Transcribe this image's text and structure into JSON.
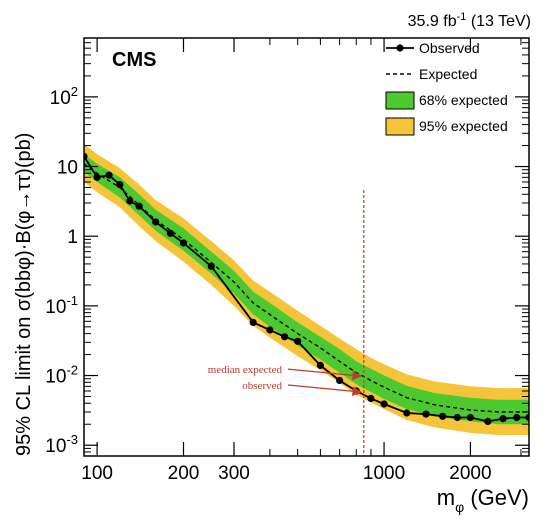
{
  "chart_data": {
    "type": "line",
    "lumi_label": "35.9 fb",
    "lumi_sup": "-1",
    "lumi_energy": " (13 TeV)",
    "experiment_label": "CMS",
    "xlabel_main": "m",
    "xlabel_sub": "φ",
    "xlabel_unit": " (GeV)",
    "ylabel": "95% CL limit on σ(bbφ)·B(φ→ττ)(pb)",
    "xscale": "log",
    "yscale": "log",
    "xlim": [
      90,
      3200
    ],
    "ylim": [
      0.0007,
      700
    ],
    "x_ticks": [
      {
        "value": 100,
        "label": "100"
      },
      {
        "value": 200,
        "label": "200"
      },
      {
        "value": 300,
        "label": "300"
      },
      {
        "value": 1000,
        "label": "1000"
      },
      {
        "value": 2000,
        "label": "2000"
      }
    ],
    "y_ticks": [
      {
        "value": 0.001,
        "base": "10",
        "exp": "-3"
      },
      {
        "value": 0.01,
        "base": "10",
        "exp": "-2"
      },
      {
        "value": 0.1,
        "base": "10",
        "exp": "-1"
      },
      {
        "value": 1,
        "base": "1",
        "exp": ""
      },
      {
        "value": 10,
        "base": "10",
        "exp": ""
      },
      {
        "value": 100,
        "base": "10",
        "exp": "2"
      }
    ],
    "legend": {
      "placement": "top-right",
      "entries": [
        {
          "label": "Observed",
          "style": "observed"
        },
        {
          "label": "Expected",
          "style": "expected"
        },
        {
          "label": "68% expected",
          "style": "band68"
        },
        {
          "label": "95% expected",
          "style": "band95"
        }
      ]
    },
    "colors": {
      "band68": "#4dc930",
      "band95": "#f5c43a",
      "observed": "#000000",
      "expected": "#000000",
      "annotation": "#c0392b"
    },
    "series": [
      {
        "name": "Observed",
        "x": [
          90,
          100,
          110,
          120,
          130,
          140,
          160,
          180,
          200,
          250,
          350,
          400,
          450,
          500,
          600,
          700,
          800,
          900,
          1000,
          1200,
          1400,
          1600,
          1800,
          2000,
          2300,
          2600,
          2900,
          3200
        ],
        "values": [
          14,
          7,
          7.5,
          5.5,
          3.2,
          2.7,
          1.6,
          1.1,
          0.8,
          0.37,
          0.058,
          0.045,
          0.036,
          0.031,
          0.014,
          0.0085,
          0.006,
          0.0047,
          0.0039,
          0.0029,
          0.0028,
          0.0026,
          0.0025,
          0.0025,
          0.0022,
          0.0024,
          0.0025,
          0.0025
        ]
      },
      {
        "name": "Expected",
        "x": [
          90,
          100,
          120,
          140,
          160,
          200,
          250,
          300,
          350,
          400,
          500,
          600,
          700,
          800,
          900,
          1000,
          1200,
          1500,
          2000,
          2500,
          3200
        ],
        "values": [
          11,
          8,
          5.0,
          2.8,
          1.7,
          0.9,
          0.42,
          0.22,
          0.11,
          0.075,
          0.04,
          0.025,
          0.016,
          0.011,
          0.0085,
          0.0068,
          0.0048,
          0.0038,
          0.0032,
          0.003,
          0.003
        ]
      }
    ],
    "band68": {
      "x": [
        90,
        100,
        120,
        140,
        160,
        200,
        250,
        300,
        350,
        400,
        500,
        600,
        700,
        800,
        900,
        1000,
        1200,
        1500,
        2000,
        2500,
        3200
      ],
      "lower": [
        8.5,
        6.0,
        3.6,
        2.0,
        1.2,
        0.62,
        0.29,
        0.15,
        0.075,
        0.05,
        0.027,
        0.017,
        0.011,
        0.0075,
        0.0058,
        0.0046,
        0.0033,
        0.0026,
        0.0022,
        0.002,
        0.002
      ],
      "upper": [
        15,
        11,
        7.0,
        4.0,
        2.4,
        1.3,
        0.6,
        0.32,
        0.16,
        0.11,
        0.058,
        0.036,
        0.024,
        0.016,
        0.0125,
        0.01,
        0.0071,
        0.0056,
        0.0048,
        0.0045,
        0.0045
      ]
    },
    "band95": {
      "x": [
        90,
        100,
        120,
        140,
        160,
        200,
        250,
        300,
        350,
        400,
        500,
        600,
        700,
        800,
        900,
        1000,
        1200,
        1500,
        2000,
        2500,
        3200
      ],
      "lower": [
        6.0,
        4.3,
        2.6,
        1.4,
        0.85,
        0.43,
        0.2,
        0.1,
        0.052,
        0.035,
        0.019,
        0.012,
        0.0078,
        0.0053,
        0.0041,
        0.0033,
        0.0023,
        0.0018,
        0.0015,
        0.0014,
        0.0014
      ],
      "upper": [
        21,
        15,
        9.5,
        5.5,
        3.3,
        1.8,
        0.85,
        0.45,
        0.23,
        0.16,
        0.085,
        0.052,
        0.034,
        0.024,
        0.018,
        0.0145,
        0.0104,
        0.0082,
        0.007,
        0.0066,
        0.0066
      ]
    },
    "annotations": [
      {
        "text": "median expected",
        "x": 850,
        "y": 0.0098
      },
      {
        "text": "observed",
        "x": 850,
        "y": 0.0058
      }
    ],
    "vline_x": 850
  }
}
